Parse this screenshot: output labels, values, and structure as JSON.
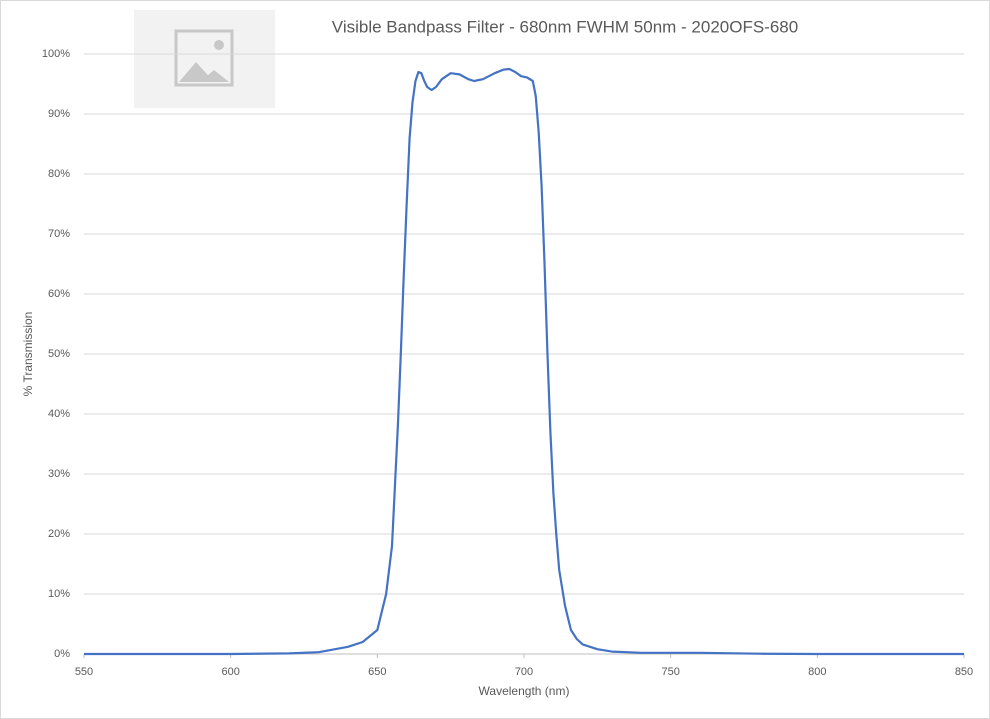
{
  "chart_data": {
    "type": "line",
    "title": "Visible Bandpass Filter - 680nm FWHM 50nm - 2020OFS-680",
    "x_label": "Wavelength (nm)",
    "y_label": "% Transmission",
    "x": [
      550,
      600,
      620,
      630,
      640,
      645,
      650,
      651,
      653,
      655,
      656,
      657,
      658,
      659,
      660,
      661,
      662,
      663,
      664,
      665,
      666,
      667,
      668.5,
      670,
      672,
      675,
      678,
      681,
      683,
      686,
      690,
      693,
      695,
      697,
      699,
      701,
      703,
      704,
      705,
      706,
      707,
      708,
      709,
      710,
      711,
      712,
      714,
      716,
      718,
      720,
      725,
      730,
      740,
      760,
      780,
      800,
      850
    ],
    "series": [
      {
        "name": "Transmission",
        "color": "#4472c4",
        "values": [
          0,
          0,
          0.1,
          0.3,
          1.2,
          2,
          4,
          6,
          10,
          18,
          28,
          38,
          50,
          63,
          75,
          86,
          92,
          95.5,
          97,
          96.8,
          95.5,
          94.5,
          94,
          94.5,
          95.8,
          96.8,
          96.6,
          95.8,
          95.5,
          95.8,
          96.8,
          97.4,
          97.5,
          97,
          96.3,
          96.1,
          95.5,
          93,
          87,
          78,
          65,
          50,
          37,
          27,
          20,
          14,
          8,
          4,
          2.5,
          1.6,
          0.8,
          0.4,
          0.2,
          0.2,
          0.05,
          0,
          0
        ]
      }
    ],
    "xlim": [
      550,
      850
    ],
    "xticks": [
      550,
      600,
      650,
      700,
      750,
      800,
      850
    ],
    "ylim": [
      0,
      100
    ],
    "yticks": [
      {
        "value": 0,
        "label": "0%"
      },
      {
        "value": 10,
        "label": "10%"
      },
      {
        "value": 20,
        "label": "20%"
      },
      {
        "value": 30,
        "label": "30%"
      },
      {
        "value": 40,
        "label": "40%"
      },
      {
        "value": 50,
        "label": "50%"
      },
      {
        "value": 60,
        "label": "60%"
      },
      {
        "value": 70,
        "label": "70%"
      },
      {
        "value": 80,
        "label": "80%"
      },
      {
        "value": 90,
        "label": "90%"
      },
      {
        "value": 100,
        "label": "100%"
      }
    ],
    "grid": true
  }
}
